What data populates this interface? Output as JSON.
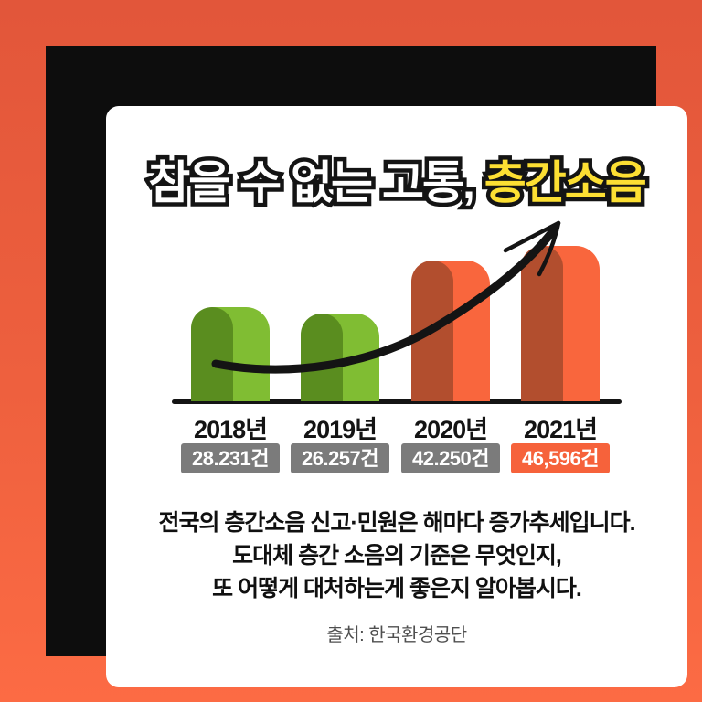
{
  "title": {
    "prefix": "참을 수 없는 고통, ",
    "highlight": "층간소음"
  },
  "chart_data": {
    "type": "bar",
    "categories": [
      "2018년",
      "2019년",
      "2020년",
      "2021년"
    ],
    "values": [
      28231,
      26257,
      42250,
      46596
    ],
    "value_labels": [
      "28.231건",
      "26.257건",
      "42.250건",
      "46,596건"
    ],
    "unit": "건",
    "ylim": [
      0,
      46596
    ],
    "grid": false,
    "annotation": "hand-drawn black arrow curving upward over bars showing increasing trend",
    "bars": [
      {
        "light": "#80bd33",
        "dark": "#5a8d1f",
        "badge_bg": "#7b7b7b"
      },
      {
        "light": "#80bd33",
        "dark": "#5a8d1f",
        "badge_bg": "#7b7b7b"
      },
      {
        "light": "#f9663d",
        "dark": "#b24e2e",
        "badge_bg": "#7b7b7b"
      },
      {
        "light": "#f9663d",
        "dark": "#b24e2e",
        "badge_bg": "#f6623b"
      }
    ]
  },
  "description": {
    "lines": [
      "전국의 층간소음 신고·민원은 해마다 증가추세입니다.",
      "도대체 층간 소음의 기준은 무엇인지,",
      "또 어떻게 대처하는게 좋은지 알아봅시다."
    ]
  },
  "source": {
    "text": "출처: 한국환경공단"
  },
  "colors": {
    "background_top": "#e2563a",
    "background_bottom": "#fc6b44",
    "frame": "#0d0d0d",
    "card": "#ffffff",
    "title_fill": "#ffffff",
    "title_highlight": "#fcdf33",
    "title_outline": "#141414",
    "axis": "#141414",
    "badge_text": "#ffffff"
  }
}
